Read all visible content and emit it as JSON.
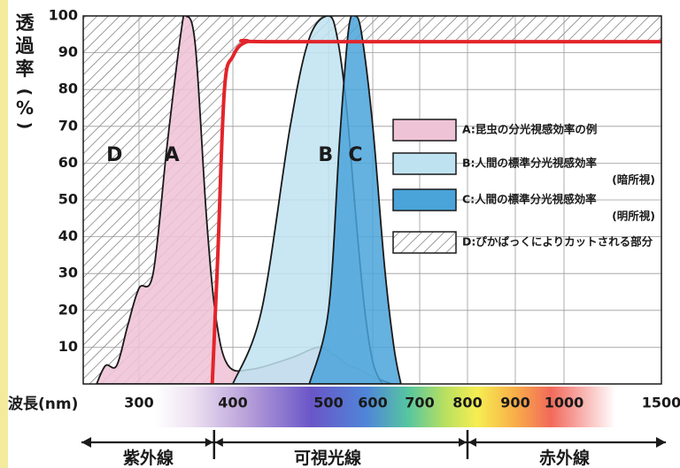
{
  "chart_data": {
    "type": "area",
    "ylabel": "透過率(%)",
    "xlabel": "波長(nm)",
    "ylim": [
      0,
      100
    ],
    "y_ticks": [
      10,
      20,
      30,
      40,
      50,
      60,
      70,
      80,
      90,
      100
    ],
    "x_scale": "nonlinear",
    "x_ticks": [
      "300",
      "400",
      "500",
      "600",
      "700",
      "800",
      "900",
      "1000",
      "1500"
    ],
    "curve_labels": {
      "A": "A",
      "B": "B",
      "C": "C",
      "D": "D"
    },
    "series": [
      {
        "key": "A",
        "name": "A:昆虫の分光視感効率の例",
        "color": "#efc3d6",
        "points": [
          [
            262,
            0
          ],
          [
            270,
            5
          ],
          [
            280,
            5
          ],
          [
            290,
            16
          ],
          [
            300,
            26
          ],
          [
            315,
            30
          ],
          [
            330,
            65
          ],
          [
            345,
            96
          ],
          [
            350,
            100
          ],
          [
            360,
            92
          ],
          [
            372,
            45
          ],
          [
            382,
            18
          ],
          [
            395,
            5
          ],
          [
            420,
            4
          ],
          [
            460,
            7
          ],
          [
            490,
            10
          ],
          [
            510,
            8
          ],
          [
            525,
            7
          ],
          [
            545,
            5
          ],
          [
            570,
            4
          ],
          [
            600,
            2
          ],
          [
            640,
            0
          ]
        ]
      },
      {
        "key": "B",
        "name": "B:人間の標準分光視感効率（暗所視）",
        "color": "#bfe2f1",
        "points": [
          [
            400,
            0
          ],
          [
            430,
            20
          ],
          [
            460,
            70
          ],
          [
            480,
            94
          ],
          [
            500,
            100
          ],
          [
            520,
            94
          ],
          [
            540,
            76
          ],
          [
            560,
            48
          ],
          [
            580,
            22
          ],
          [
            600,
            6
          ],
          [
            620,
            0
          ]
        ]
      },
      {
        "key": "C",
        "name": "C:人間の標準分光視感効率（明所視）",
        "color": "#4aa3d9",
        "points": [
          [
            480,
            0
          ],
          [
            500,
            20
          ],
          [
            525,
            66
          ],
          [
            545,
            96
          ],
          [
            560,
            100
          ],
          [
            575,
            95
          ],
          [
            600,
            70
          ],
          [
            625,
            32
          ],
          [
            645,
            10
          ],
          [
            660,
            0
          ]
        ]
      },
      {
        "key": "D",
        "name": "D:ぴかぱっくによりカットされる部分",
        "style": "hatched"
      }
    ],
    "cut_curve": {
      "color": "#e3242b",
      "points": [
        [
          378,
          0
        ],
        [
          384,
          35
        ],
        [
          391,
          80
        ],
        [
          400,
          89
        ],
        [
          415,
          93
        ],
        [
          450,
          93
        ],
        [
          1500,
          93
        ]
      ]
    },
    "legend_position": "right",
    "legend": [
      {
        "key": "A",
        "line1": "A:昆虫の分光視感効率の例",
        "line2": ""
      },
      {
        "key": "B",
        "line1": "B:人間の標準分光視感効率",
        "line2": "(暗所視)"
      },
      {
        "key": "C",
        "line1": "C:人間の標準分光視感効率",
        "line2": "(明所視)"
      },
      {
        "key": "D",
        "line1": "D:ぴかぱっくによりカットされる部分",
        "line2": ""
      }
    ],
    "regions": [
      "紫外線",
      "可視光線",
      "赤外線"
    ]
  },
  "colors": {
    "axis": "#1a1a1a",
    "grid": "#9a9a9a",
    "hatch": "#6a6a6a",
    "cut_line": "#e3242b",
    "side_strip": "#f4ea9c"
  }
}
